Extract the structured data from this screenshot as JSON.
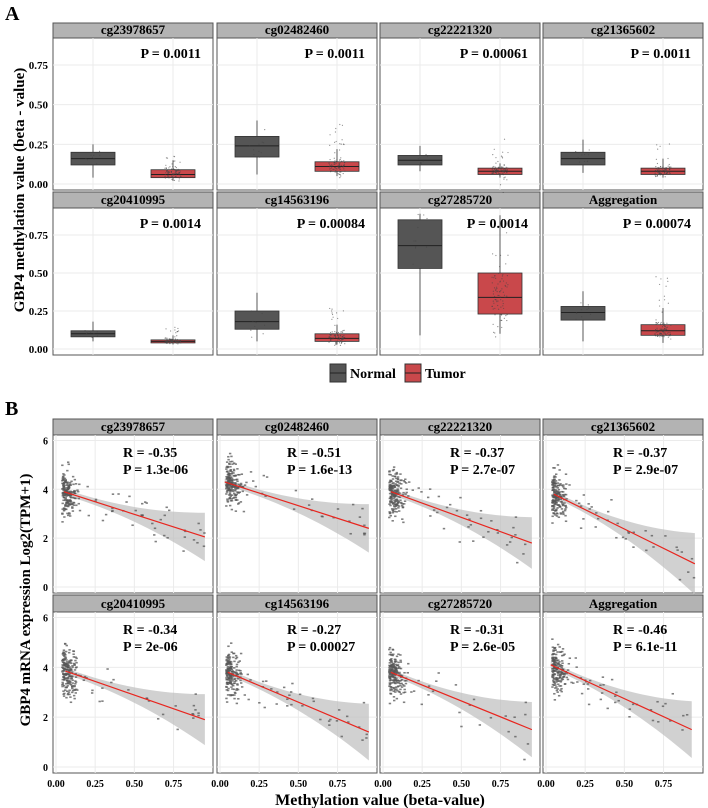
{
  "chart_data": [
    {
      "panel_label": "A",
      "type": "box",
      "ylabel": "GBP4 methylation value (beta - value)",
      "yticks": [
        "0.00",
        "0.25",
        "0.50",
        "0.75"
      ],
      "ylim": [
        0,
        0.9
      ],
      "legend": {
        "placement": "bottom",
        "entries": [
          {
            "name": "Normal",
            "color": "#555555"
          },
          {
            "name": "Tumor",
            "color": "#c9484b"
          }
        ]
      },
      "facets": [
        {
          "title": "cg23978657",
          "p": "P = 0.0011",
          "normal": [
            0.04,
            0.12,
            0.16,
            0.2,
            0.25
          ],
          "tumor": [
            0.02,
            0.04,
            0.06,
            0.09,
            0.15
          ]
        },
        {
          "title": "cg02482460",
          "p": "P = 0.0011",
          "normal": [
            0.06,
            0.17,
            0.24,
            0.3,
            0.4
          ],
          "tumor": [
            0.05,
            0.08,
            0.11,
            0.14,
            0.22
          ]
        },
        {
          "title": "cg22221320",
          "p": "P = 0.00061",
          "normal": [
            0.08,
            0.12,
            0.15,
            0.18,
            0.24
          ],
          "tumor": [
            0.04,
            0.06,
            0.08,
            0.1,
            0.13
          ]
        },
        {
          "title": "cg21365602",
          "p": "P = 0.0011",
          "normal": [
            0.07,
            0.12,
            0.16,
            0.2,
            0.28
          ],
          "tumor": [
            0.04,
            0.06,
            0.08,
            0.1,
            0.16
          ]
        },
        {
          "title": "cg20410995",
          "p": "P = 0.0014",
          "normal": [
            0.05,
            0.08,
            0.1,
            0.12,
            0.18
          ],
          "tumor": [
            0.03,
            0.04,
            0.05,
            0.06,
            0.09
          ]
        },
        {
          "title": "cg14563196",
          "p": "P = 0.00084",
          "normal": [
            0.05,
            0.13,
            0.18,
            0.25,
            0.37
          ],
          "tumor": [
            0.03,
            0.05,
            0.07,
            0.1,
            0.16
          ]
        },
        {
          "title": "cg27285720",
          "p": "P = 0.0014",
          "normal": [
            0.09,
            0.53,
            0.68,
            0.85,
            0.89
          ],
          "tumor": [
            0.1,
            0.23,
            0.34,
            0.5,
            0.88
          ]
        },
        {
          "title": "Aggregation",
          "p": "P = 0.00074",
          "normal": [
            0.05,
            0.19,
            0.24,
            0.28,
            0.38
          ],
          "tumor": [
            0.04,
            0.09,
            0.12,
            0.16,
            0.27
          ]
        }
      ]
    },
    {
      "panel_label": "B",
      "type": "scatter",
      "xlabel": "Methylation value (beta-value)",
      "ylabel": "GBP4 mRNA expression Log2(TPM+1)",
      "xticks": [
        "0.00",
        "0.25",
        "0.50",
        "0.75"
      ],
      "yticks": [
        "0",
        "2",
        "4",
        "6"
      ],
      "xlim": [
        0,
        1
      ],
      "ylim": [
        -0.2,
        6.2
      ],
      "facets": [
        {
          "title": "cg23978657",
          "r": "R = -0.35",
          "p": "P = 1.3e-06",
          "fit": [
            [
              0.05,
              3.9
            ],
            [
              0.95,
              2.05
            ]
          ]
        },
        {
          "title": "cg02482460",
          "r": "R = -0.51",
          "p": "P = 1.6e-13",
          "fit": [
            [
              0.03,
              4.3
            ],
            [
              0.95,
              2.4
            ]
          ]
        },
        {
          "title": "cg22221320",
          "r": "R = -0.37",
          "p": "P = 2.7e-07",
          "fit": [
            [
              0.05,
              3.9
            ],
            [
              0.95,
              1.8
            ]
          ]
        },
        {
          "title": "cg21365602",
          "r": "R = -0.37",
          "p": "P = 2.9e-07",
          "fit": [
            [
              0.05,
              3.8
            ],
            [
              0.95,
              0.95
            ]
          ]
        },
        {
          "title": "cg20410995",
          "r": "R = -0.34",
          "p": "P = 2e-06",
          "fit": [
            [
              0.06,
              3.85
            ],
            [
              0.95,
              1.9
            ]
          ]
        },
        {
          "title": "cg14563196",
          "r": "R = -0.27",
          "p": "P = 0.00027",
          "fit": [
            [
              0.05,
              3.8
            ],
            [
              0.95,
              1.4
            ]
          ]
        },
        {
          "title": "cg27285720",
          "r": "R = -0.31",
          "p": "P = 2.6e-05",
          "fit": [
            [
              0.05,
              3.8
            ],
            [
              0.95,
              1.5
            ]
          ]
        },
        {
          "title": "Aggregation",
          "r": "R = -0.46",
          "p": "P = 6.1e-11",
          "fit": [
            [
              0.03,
              4.1
            ],
            [
              0.93,
              1.5
            ]
          ]
        }
      ]
    }
  ]
}
